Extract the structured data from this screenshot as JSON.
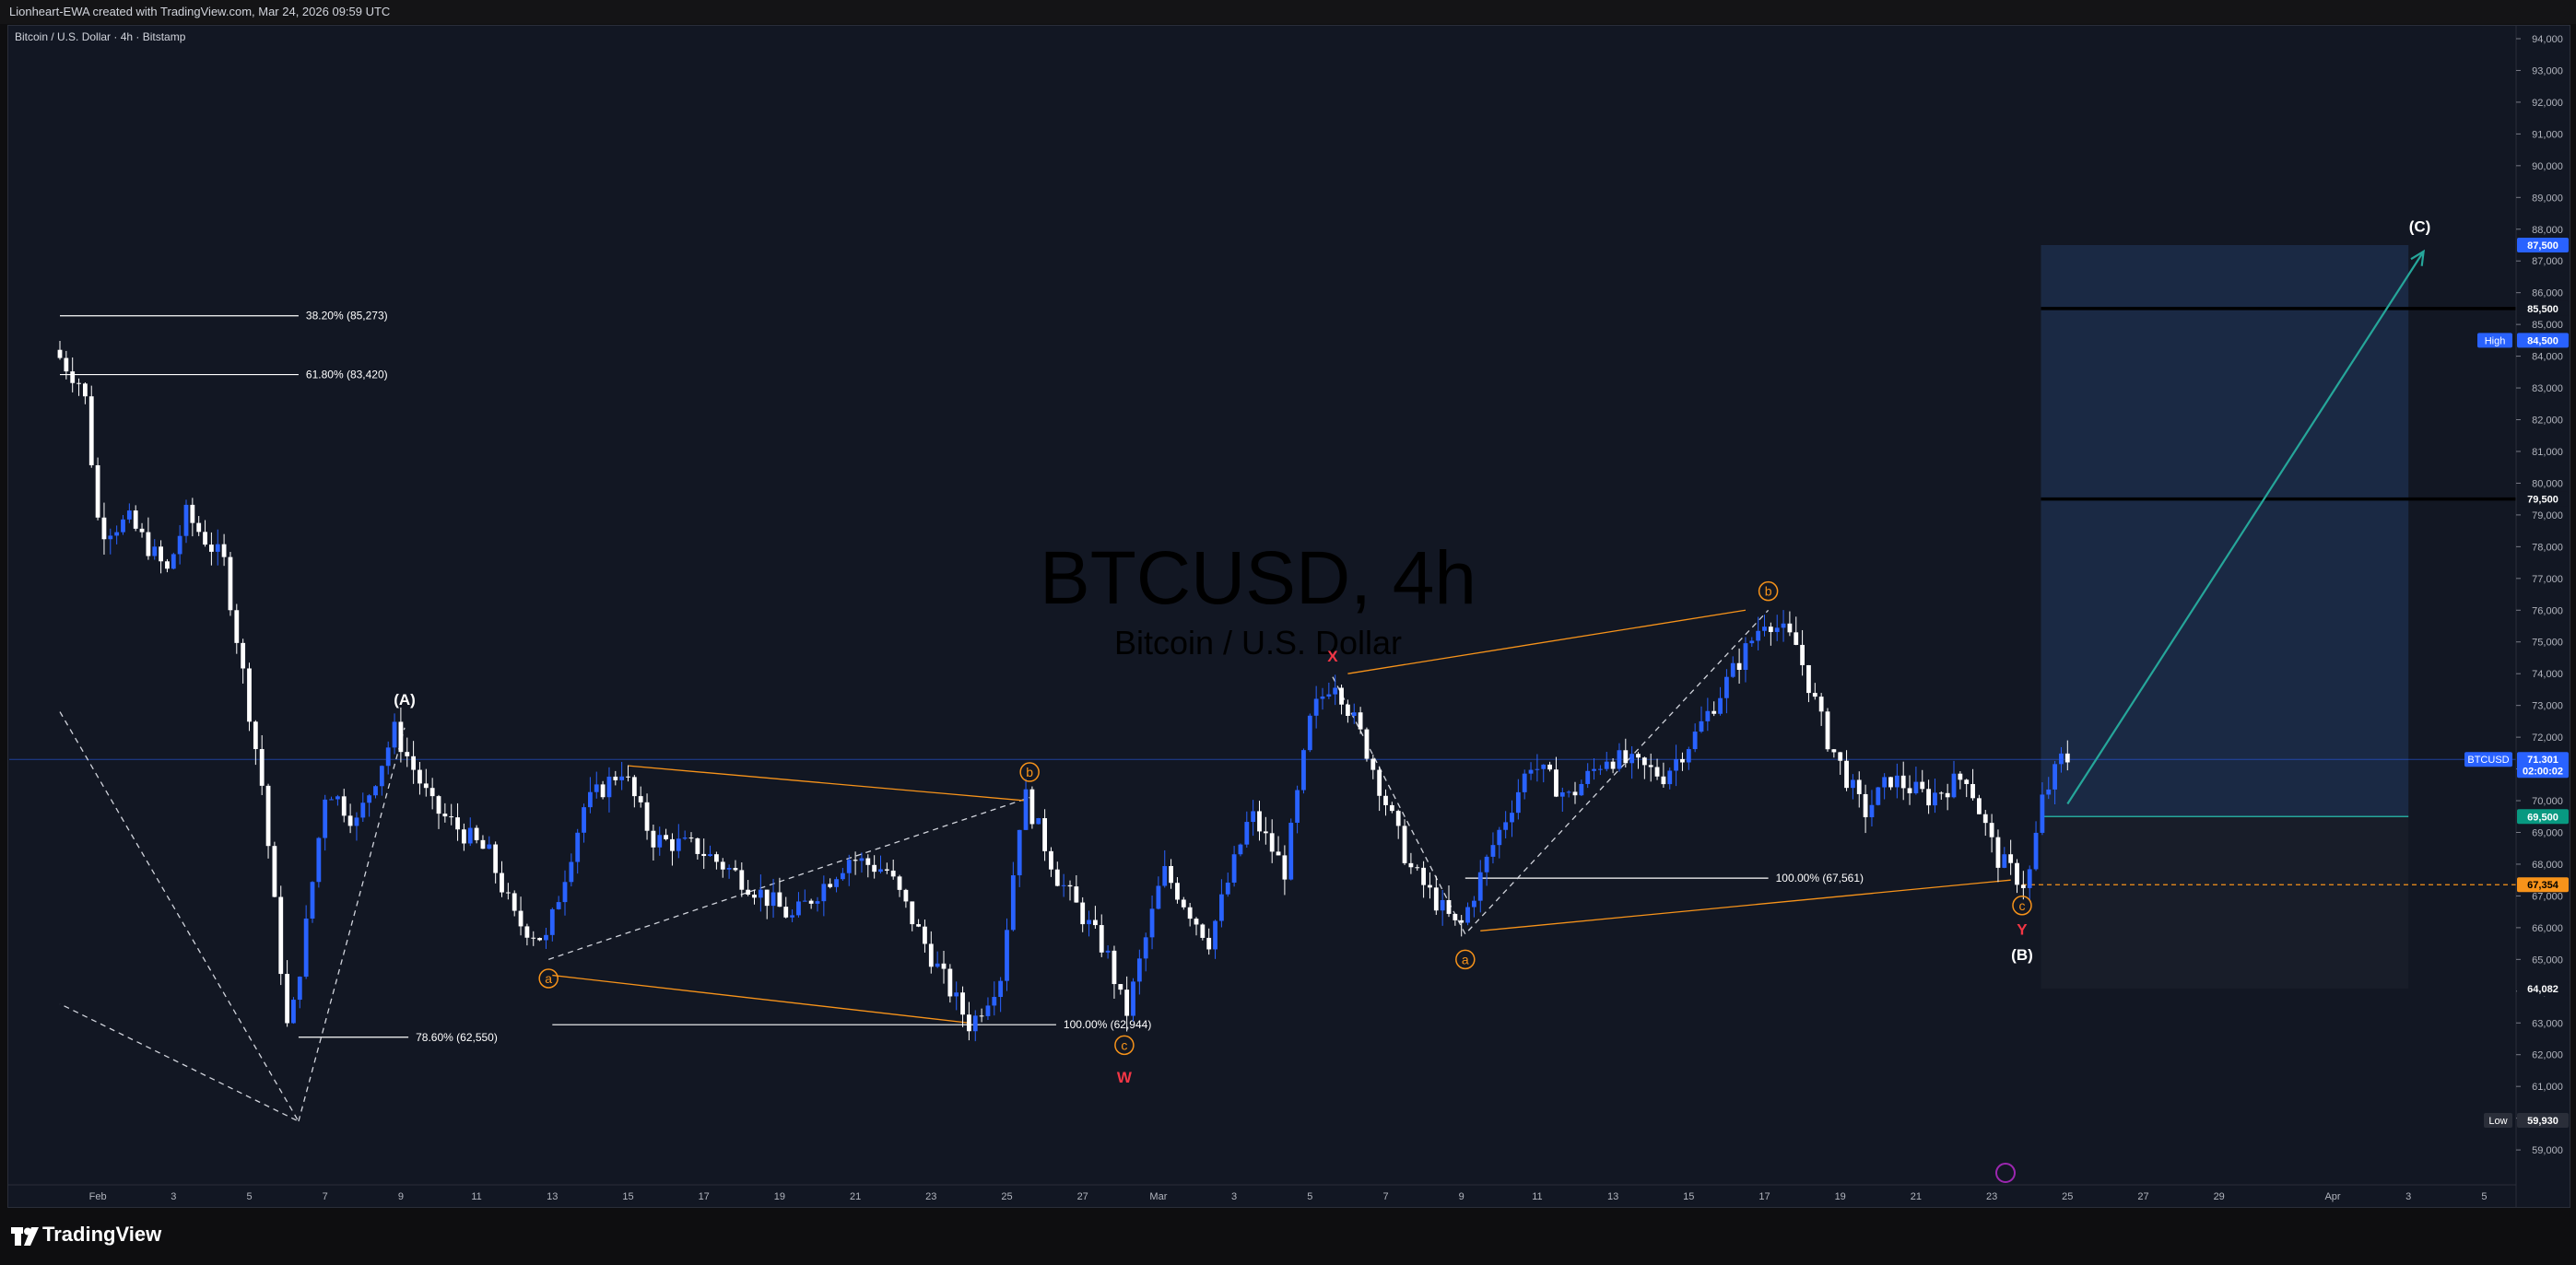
{
  "header": {
    "created_by": "Lionheart-EWA created with TradingView.com, Mar 24, 2026 09:59 UTC"
  },
  "symbol": {
    "description": "Bitcoin / U.S. Dollar · 4h · Bitstamp",
    "watermark_title": "BTCUSD, 4h",
    "watermark_subtitle": "Bitcoin / U.S. Dollar"
  },
  "branding": {
    "logo_text": "TradingView"
  },
  "colors": {
    "background": "#121723",
    "bull": "#2962ff",
    "bear": "#ffffff",
    "orange": "#f7931a",
    "red_label": "#f23645",
    "teal": "#26a69a",
    "zone_blue": "#1e3050"
  },
  "chart_data": {
    "type": "candlestick",
    "x_axis": {
      "ticks": [
        {
          "label": "Feb",
          "day": 1
        },
        {
          "label": "3",
          "day": 3
        },
        {
          "label": "5",
          "day": 5
        },
        {
          "label": "7",
          "day": 7
        },
        {
          "label": "9",
          "day": 9
        },
        {
          "label": "11",
          "day": 11
        },
        {
          "label": "13",
          "day": 13
        },
        {
          "label": "15",
          "day": 15
        },
        {
          "label": "17",
          "day": 17
        },
        {
          "label": "19",
          "day": 19
        },
        {
          "label": "21",
          "day": 21
        },
        {
          "label": "23",
          "day": 23
        },
        {
          "label": "25",
          "day": 25
        },
        {
          "label": "27",
          "day": 27
        },
        {
          "label": "Mar",
          "day": 29
        },
        {
          "label": "3",
          "day": 31
        },
        {
          "label": "5",
          "day": 33
        },
        {
          "label": "7",
          "day": 35
        },
        {
          "label": "9",
          "day": 37
        },
        {
          "label": "11",
          "day": 39
        },
        {
          "label": "13",
          "day": 41
        },
        {
          "label": "15",
          "day": 43
        },
        {
          "label": "17",
          "day": 45
        },
        {
          "label": "19",
          "day": 47
        },
        {
          "label": "21",
          "day": 49
        },
        {
          "label": "23",
          "day": 51
        },
        {
          "label": "25",
          "day": 53
        },
        {
          "label": "27",
          "day": 55
        },
        {
          "label": "29",
          "day": 57
        },
        {
          "label": "Apr",
          "day": 60
        },
        {
          "label": "3",
          "day": 62
        },
        {
          "label": "5",
          "day": 64
        }
      ]
    },
    "y_axis": {
      "min": 58000,
      "max": 94500,
      "ticks": [
        "94,000",
        "93,000",
        "92,000",
        "91,000",
        "90,000",
        "89,000",
        "88,000",
        "87,000",
        "86,000",
        "85,000",
        "84,000",
        "83,000",
        "82,000",
        "81,000",
        "80,000",
        "79,000",
        "78,000",
        "77,000",
        "76,000",
        "75,000",
        "74,000",
        "73,000",
        "72,000",
        "71,000",
        "70,000",
        "69,000",
        "68,000",
        "67,000",
        "66,000",
        "65,000",
        "64,000",
        "63,000",
        "62,000",
        "61,000",
        "60,000",
        "59,000"
      ]
    },
    "price_path": [
      [
        0,
        84200
      ],
      [
        0.8,
        83000
      ],
      [
        1.2,
        78500
      ],
      [
        2,
        78800
      ],
      [
        3,
        77200
      ],
      [
        3.5,
        79000
      ],
      [
        4.5,
        77500
      ],
      [
        5.5,
        70500
      ],
      [
        6.2,
        62500
      ],
      [
        6.6,
        65500
      ],
      [
        7.2,
        70500
      ],
      [
        8,
        69300
      ],
      [
        9,
        72200
      ],
      [
        10,
        69800
      ],
      [
        11.5,
        68300
      ],
      [
        12.2,
        66200
      ],
      [
        13,
        65600
      ],
      [
        14,
        69800
      ],
      [
        15,
        71000
      ],
      [
        15.8,
        68800
      ],
      [
        17,
        68500
      ],
      [
        18,
        67700
      ],
      [
        19.5,
        66300
      ],
      [
        21,
        68200
      ],
      [
        22,
        67800
      ],
      [
        23.3,
        64800
      ],
      [
        24.2,
        62900
      ],
      [
        25,
        64500
      ],
      [
        25.6,
        70300
      ],
      [
        26.5,
        67600
      ],
      [
        27.8,
        65200
      ],
      [
        28.3,
        63200
      ],
      [
        29.3,
        67800
      ],
      [
        30.5,
        65600
      ],
      [
        31.6,
        69600
      ],
      [
        32.5,
        67800
      ],
      [
        33.2,
        72700
      ],
      [
        33.8,
        73900
      ],
      [
        34.6,
        71800
      ],
      [
        35.8,
        67900
      ],
      [
        37.1,
        65900
      ],
      [
        38,
        68600
      ],
      [
        39,
        71200
      ],
      [
        40,
        70100
      ],
      [
        41,
        71400
      ],
      [
        42.5,
        70800
      ],
      [
        43.3,
        72000
      ],
      [
        44.5,
        74400
      ],
      [
        45.2,
        75800
      ],
      [
        46,
        74900
      ],
      [
        46.8,
        72000
      ],
      [
        47.8,
        69600
      ],
      [
        48.5,
        70700
      ],
      [
        49.5,
        70100
      ],
      [
        50.5,
        70800
      ],
      [
        51.3,
        68200
      ],
      [
        52.1,
        67300
      ],
      [
        52.5,
        70000
      ],
      [
        53,
        71300
      ]
    ],
    "series": [
      {
        "name": "long position target zone",
        "type": "position",
        "entry": 69500,
        "target": 87500,
        "stop": 64082,
        "from_day": 52.3,
        "to_day": 62
      },
      {
        "name": "resistance lines",
        "type": "hlines",
        "values": [
          85500,
          79500
        ]
      },
      {
        "name": "fibonacci retracements",
        "type": "levels",
        "items": [
          {
            "label": "38.20% (85,273)",
            "value": 85273,
            "from_day": 0,
            "to_day": 6.3
          },
          {
            "label": "61.80% (83,420)",
            "value": 83420,
            "from_day": 0,
            "to_day": 6.3
          },
          {
            "label": "78.60% (62,550)",
            "value": 62550,
            "from_day": 6.3,
            "to_day": 9.2
          },
          {
            "label": "100.00% (62,944)",
            "value": 62944,
            "from_day": 13,
            "to_day": 26.3
          },
          {
            "label": "100.00% (67,561)",
            "value": 67561,
            "from_day": 37.1,
            "to_day": 45.1
          }
        ]
      }
    ],
    "wave_labels": [
      {
        "text": "(A)",
        "day": 9.1,
        "price": 73200,
        "color": "#ffffff",
        "circle": false
      },
      {
        "text": "a",
        "day": 12.9,
        "price": 64400,
        "color": "#f7931a",
        "circle": true
      },
      {
        "text": "b",
        "day": 25.6,
        "price": 70900,
        "color": "#f7931a",
        "circle": true
      },
      {
        "text": "c",
        "day": 28.1,
        "price": 62300,
        "color": "#f7931a",
        "circle": true
      },
      {
        "text": "W",
        "day": 28.1,
        "price": 61300,
        "color": "#f23645",
        "circle": false
      },
      {
        "text": "X",
        "day": 33.6,
        "price": 74550,
        "color": "#f23645",
        "circle": false
      },
      {
        "text": "a",
        "day": 37.1,
        "price": 65000,
        "color": "#f7931a",
        "circle": true
      },
      {
        "text": "b",
        "day": 45.1,
        "price": 76600,
        "color": "#f7931a",
        "circle": true
      },
      {
        "text": "c",
        "day": 51.8,
        "price": 66700,
        "color": "#f7931a",
        "circle": true
      },
      {
        "text": "Y",
        "day": 51.8,
        "price": 65950,
        "color": "#f23645",
        "circle": false
      },
      {
        "text": "(B)",
        "day": 51.8,
        "price": 65150,
        "color": "#ffffff",
        "circle": false
      },
      {
        "text": "(C)",
        "day": 62.3,
        "price": 88100,
        "color": "#ffffff",
        "circle": false
      }
    ],
    "price_tags": [
      {
        "text": "87,500",
        "price": 87500,
        "bg": "#2962ff",
        "fg": "#ffffff"
      },
      {
        "text": "85,500",
        "price": 85500,
        "bg": "#121723",
        "fg": "#ffffff"
      },
      {
        "text": "84,500",
        "price": 84500,
        "bg": "#2962ff",
        "fg": "#ffffff",
        "left_label": "High"
      },
      {
        "text": "79,500",
        "price": 79500,
        "bg": "#121723",
        "fg": "#ffffff"
      },
      {
        "text": "71,301",
        "price": 71300,
        "bg": "#2962ff",
        "fg": "#ffffff",
        "left_label": "BTCUSD"
      },
      {
        "text": "02:00:02",
        "price": 70950,
        "bg": "#2962ff",
        "fg": "#ffffff"
      },
      {
        "text": "69,500",
        "price": 69500,
        "bg": "#089981",
        "fg": "#ffffff"
      },
      {
        "text": "67,354",
        "price": 67354,
        "bg": "#f7931a",
        "fg": "#000000"
      },
      {
        "text": "64,082",
        "price": 64082,
        "bg": "#121723",
        "fg": "#ffffff"
      },
      {
        "text": "59,930",
        "price": 59930,
        "bg": "#2a2e39",
        "fg": "#ffffff",
        "left_label": "Low"
      }
    ]
  }
}
